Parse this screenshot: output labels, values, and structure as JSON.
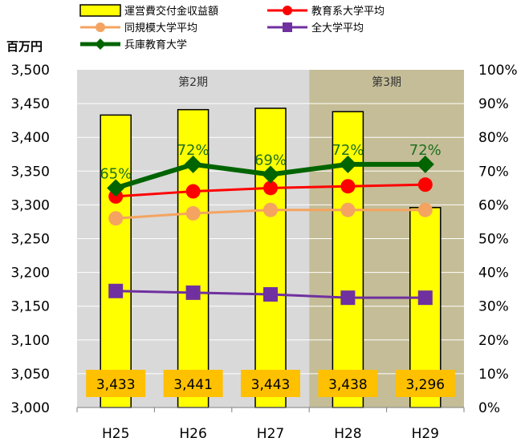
{
  "chart_data": {
    "type": "bar",
    "categories": [
      "H25",
      "H26",
      "H27",
      "H28",
      "H29"
    ],
    "y_left": {
      "unit_label": "百万円",
      "range": [
        3000,
        3500
      ],
      "ticks": [
        "3,000",
        "3,050",
        "3,100",
        "3,150",
        "3,200",
        "3,250",
        "3,300",
        "3,350",
        "3,400",
        "3,450",
        "3,500"
      ]
    },
    "y_right": {
      "range": [
        0,
        100
      ],
      "ticks": [
        "0%",
        "10%",
        "20%",
        "30%",
        "40%",
        "50%",
        "60%",
        "70%",
        "80%",
        "90%",
        "100%"
      ]
    },
    "periods": [
      {
        "label": "第2期",
        "from": "H25",
        "to": "H27",
        "color": "#d9d9d9"
      },
      {
        "label": "第3期",
        "from": "H28",
        "to": "H29",
        "color": "#c4bd97"
      }
    ],
    "bar_series": {
      "name": "運営費交付金収益額",
      "axis": "left",
      "color": "#ffff00",
      "values": [
        3433,
        3441,
        3443,
        3438,
        3296
      ],
      "value_labels": [
        "3,433",
        "3,441",
        "3,443",
        "3,438",
        "3,296"
      ]
    },
    "line_series": [
      {
        "name": "教育系大学平均",
        "axis": "right",
        "color": "#ff0000",
        "marker": "circle",
        "values": [
          62.5,
          64,
          65,
          65.5,
          66
        ]
      },
      {
        "name": "同規模大学平均",
        "axis": "right",
        "color": "#f4a460",
        "marker": "circle",
        "values": [
          56,
          57.5,
          58.5,
          58.5,
          58.5
        ]
      },
      {
        "name": "全大学平均",
        "axis": "right",
        "color": "#7030a0",
        "marker": "square",
        "values": [
          34.5,
          34,
          33.5,
          32.5,
          32.5
        ]
      },
      {
        "name": "兵庫教育大学",
        "axis": "right",
        "color": "#006400",
        "marker": "diamond",
        "values": [
          65,
          72,
          69,
          72,
          72
        ],
        "value_labels": [
          "65%",
          "72%",
          "69%",
          "72%",
          "72%"
        ]
      }
    ],
    "legend_position": "top"
  }
}
